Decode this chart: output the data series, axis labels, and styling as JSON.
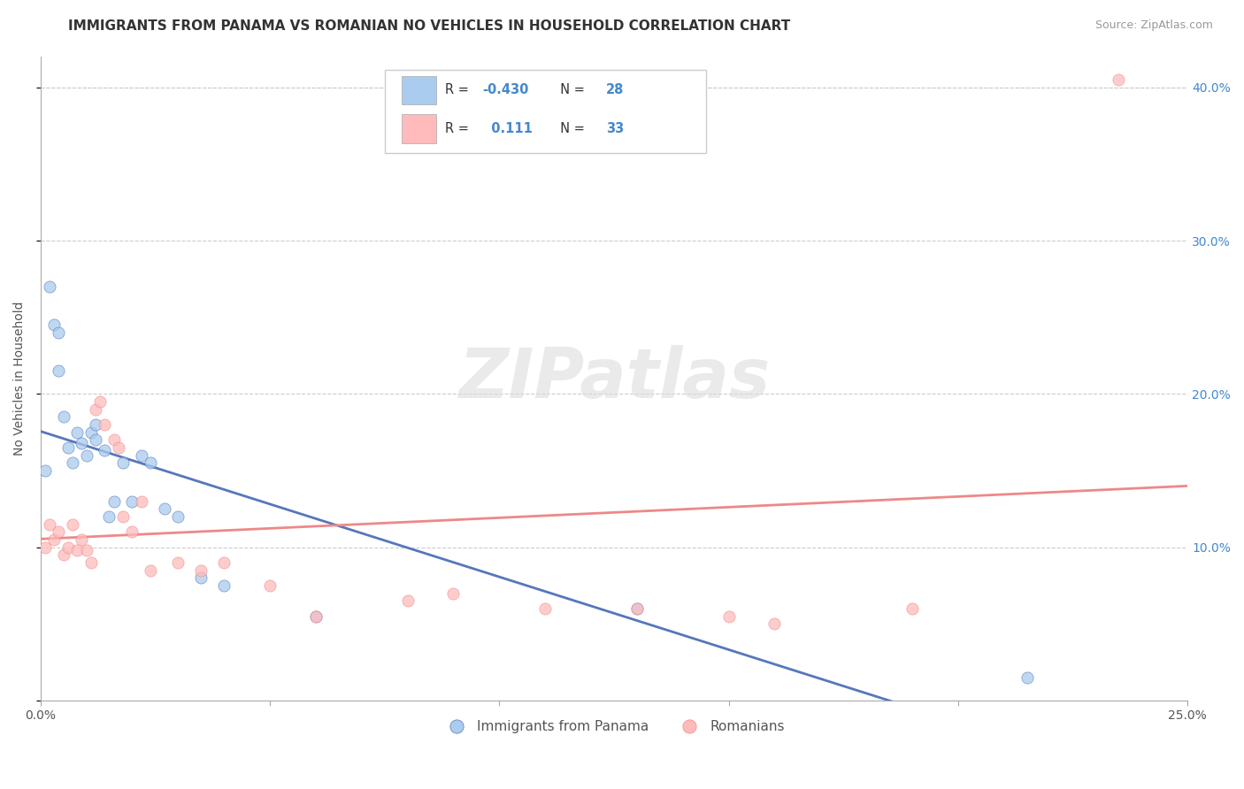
{
  "title": "IMMIGRANTS FROM PANAMA VS ROMANIAN NO VEHICLES IN HOUSEHOLD CORRELATION CHART",
  "source_text": "Source: ZipAtlas.com",
  "ylabel": "No Vehicles in Household",
  "xlim": [
    0.0,
    0.25
  ],
  "ylim": [
    0.0,
    0.42
  ],
  "xticks": [
    0.0,
    0.05,
    0.1,
    0.15,
    0.2,
    0.25
  ],
  "xtick_labels": [
    "0.0%",
    "",
    "",
    "",
    "",
    "25.0%"
  ],
  "yticks": [
    0.0,
    0.1,
    0.2,
    0.3,
    0.4
  ],
  "ytick_right_labels": [
    "",
    "10.0%",
    "20.0%",
    "30.0%",
    "40.0%"
  ],
  "blue_color": "#AACCEE",
  "pink_color": "#FFBBBB",
  "blue_line_color": "#5577BB",
  "pink_line_color": "#EE8888",
  "legend_R1": "-0.430",
  "legend_N1": "28",
  "legend_R2": "0.111",
  "legend_N2": "33",
  "legend_label1": "Immigrants from Panama",
  "legend_label2": "Romanians",
  "panama_x": [
    0.001,
    0.002,
    0.003,
    0.004,
    0.004,
    0.005,
    0.006,
    0.007,
    0.008,
    0.009,
    0.01,
    0.011,
    0.012,
    0.012,
    0.014,
    0.015,
    0.016,
    0.018,
    0.02,
    0.022,
    0.024,
    0.027,
    0.03,
    0.035,
    0.04,
    0.06,
    0.13,
    0.215
  ],
  "panama_y": [
    0.15,
    0.27,
    0.245,
    0.24,
    0.215,
    0.185,
    0.165,
    0.155,
    0.175,
    0.168,
    0.16,
    0.175,
    0.18,
    0.17,
    0.163,
    0.12,
    0.13,
    0.155,
    0.13,
    0.16,
    0.155,
    0.125,
    0.12,
    0.08,
    0.075,
    0.055,
    0.06,
    0.015
  ],
  "romanian_x": [
    0.001,
    0.002,
    0.003,
    0.004,
    0.005,
    0.006,
    0.007,
    0.008,
    0.009,
    0.01,
    0.011,
    0.012,
    0.013,
    0.014,
    0.016,
    0.017,
    0.018,
    0.02,
    0.022,
    0.024,
    0.03,
    0.035,
    0.04,
    0.05,
    0.06,
    0.08,
    0.09,
    0.11,
    0.13,
    0.15,
    0.16,
    0.19,
    0.235
  ],
  "romanian_y": [
    0.1,
    0.115,
    0.105,
    0.11,
    0.095,
    0.1,
    0.115,
    0.098,
    0.105,
    0.098,
    0.09,
    0.19,
    0.195,
    0.18,
    0.17,
    0.165,
    0.12,
    0.11,
    0.13,
    0.085,
    0.09,
    0.085,
    0.09,
    0.075,
    0.055,
    0.065,
    0.07,
    0.06,
    0.06,
    0.055,
    0.05,
    0.06,
    0.405
  ],
  "title_fontsize": 11,
  "axis_label_fontsize": 10,
  "tick_fontsize": 10,
  "background_color": "#FFFFFF",
  "grid_color": "#CCCCCC",
  "tick_color": "#4488CC"
}
